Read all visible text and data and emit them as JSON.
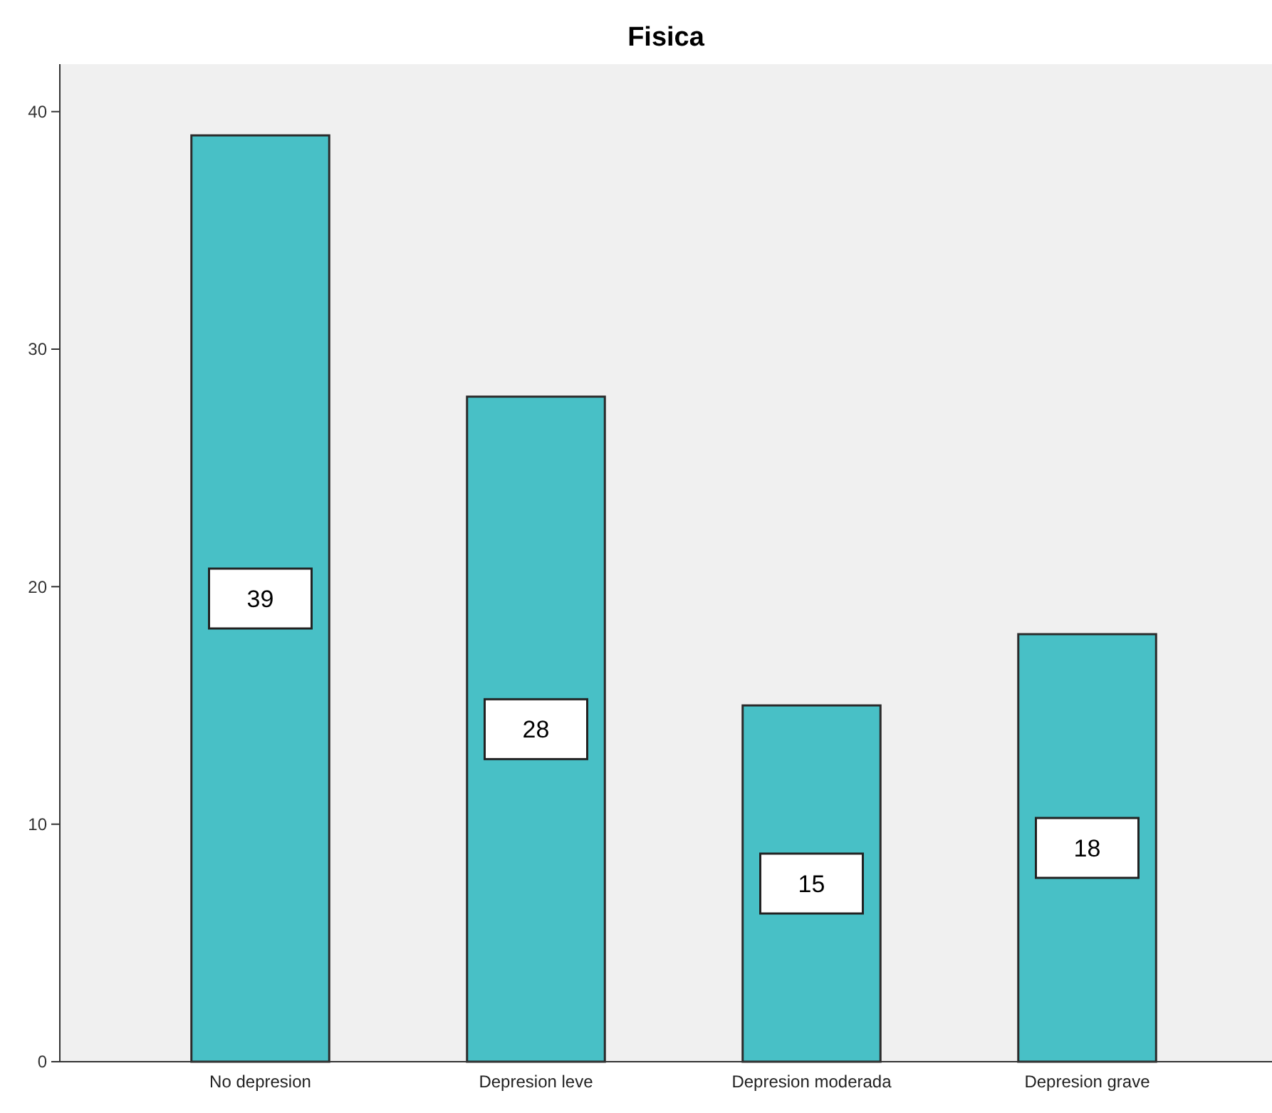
{
  "chart_data": {
    "type": "bar",
    "title": "Fisica",
    "categories": [
      "No depresion",
      "Depresion leve",
      "Depresion moderada",
      "Depresion grave"
    ],
    "values": [
      39,
      28,
      15,
      18
    ],
    "color": "#48c0c6",
    "ylim": [
      0,
      42
    ],
    "yticks": [
      0,
      10,
      20,
      30,
      40
    ],
    "grid": false,
    "data_labels": true
  }
}
